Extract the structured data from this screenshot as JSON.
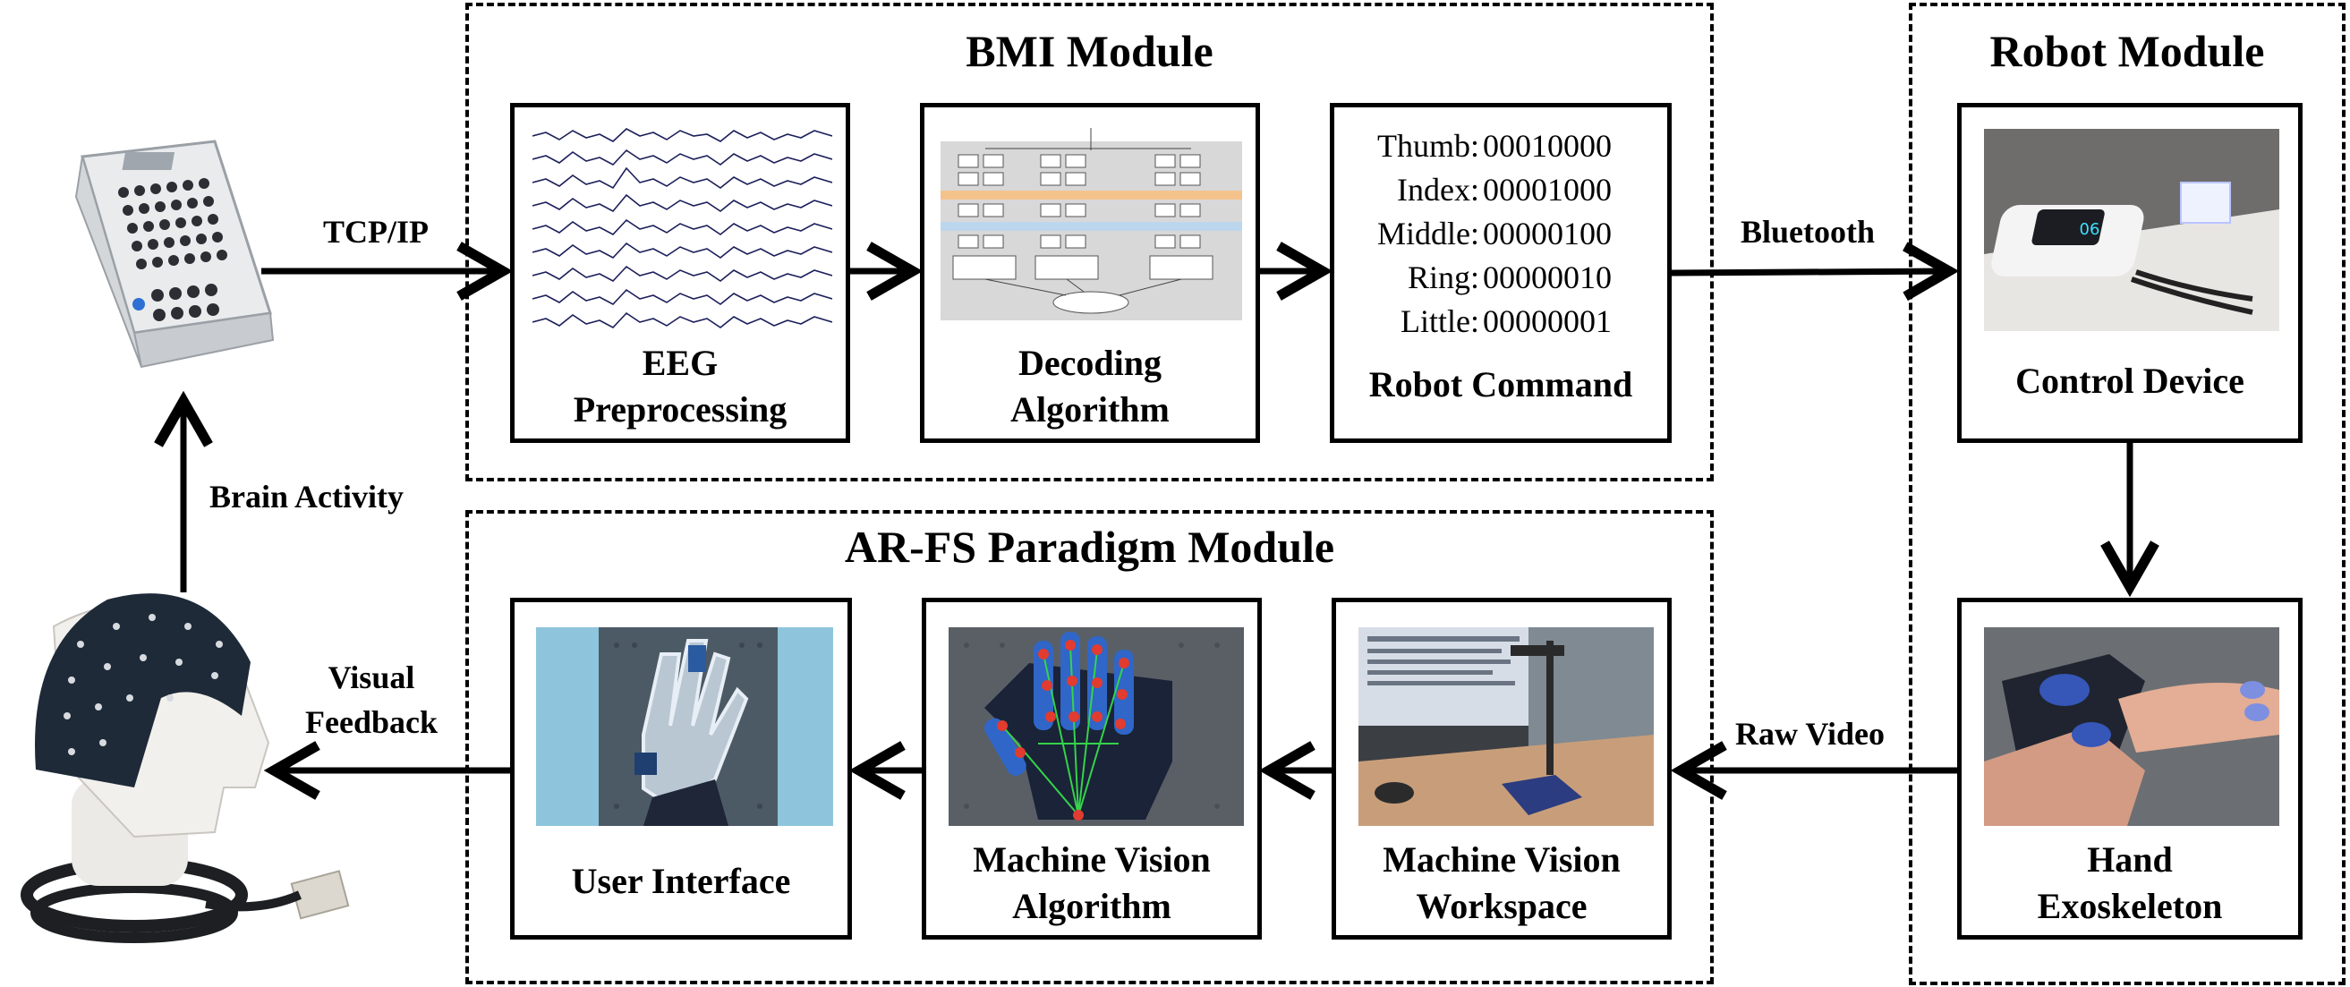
{
  "modules": {
    "bmi": "BMI Module",
    "robot": "Robot Module",
    "arfs": "AR-FS Paradigm Module"
  },
  "cards": {
    "eeg": [
      "EEG",
      "Preprocessing"
    ],
    "decoding": [
      "Decoding",
      "Algorithm"
    ],
    "robot_command": "Robot Command",
    "control_device": "Control Device",
    "hand_exo": [
      "Hand",
      "Exoskeleton"
    ],
    "mv_workspace": [
      "Machine Vision",
      "Workspace"
    ],
    "mv_algorithm": [
      "Machine Vision",
      "Algorithm"
    ],
    "user_interface": "User Interface"
  },
  "commands": [
    {
      "finger": "Thumb:",
      "code": "00010000"
    },
    {
      "finger": "Index:",
      "code": "00001000"
    },
    {
      "finger": "Middle:",
      "code": "00000100"
    },
    {
      "finger": "Ring:",
      "code": "00000010"
    },
    {
      "finger": "Little:",
      "code": "00000001"
    }
  ],
  "edges": {
    "tcpip": "TCP/IP",
    "bluetooth": "Bluetooth",
    "brain_activity": "Brain Activity",
    "visual_feedback": [
      "Visual",
      "Feedback"
    ],
    "raw_video": "Raw Video"
  }
}
